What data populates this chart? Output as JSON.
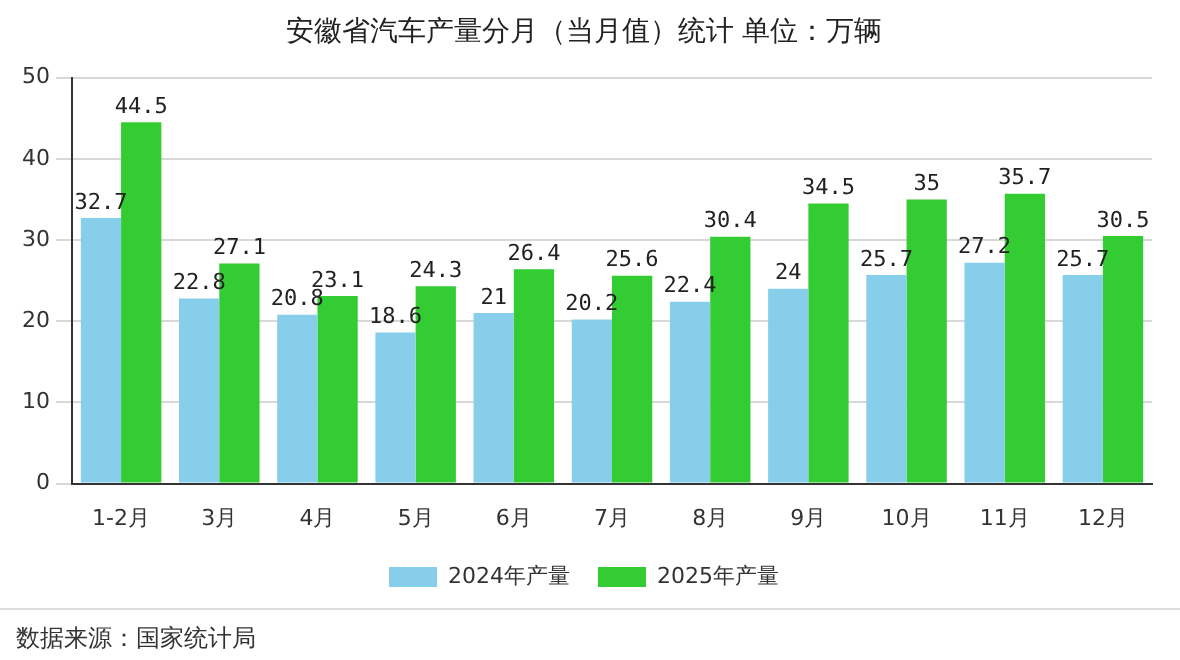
{
  "chart_data": {
    "type": "bar",
    "title": "安徽省汽车产量分月（当月值）统计 单位：万辆",
    "categories": [
      "1-2月",
      "3月",
      "4月",
      "5月",
      "6月",
      "7月",
      "8月",
      "9月",
      "10月",
      "11月",
      "12月"
    ],
    "series": [
      {
        "name": "2024年产量",
        "color": "#87ceeb",
        "values": [
          32.7,
          22.8,
          20.8,
          18.6,
          21,
          20.2,
          22.4,
          24,
          25.7,
          27.2,
          25.7
        ]
      },
      {
        "name": "2025年产量",
        "color": "#33cc33",
        "values": [
          44.5,
          27.1,
          23.1,
          24.3,
          26.4,
          25.6,
          30.4,
          34.5,
          35,
          35.7,
          30.5
        ]
      }
    ],
    "ylim": [
      0,
      50
    ],
    "yticks": [
      0,
      10,
      20,
      30,
      40,
      50
    ],
    "grid": "y",
    "legend": "bottom",
    "data_labels": true,
    "annotations": [
      "数据来源：国家统计局"
    ]
  }
}
